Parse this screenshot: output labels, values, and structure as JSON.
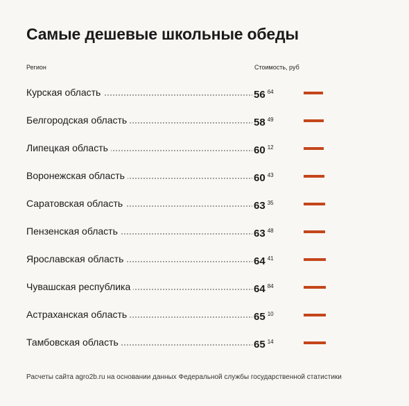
{
  "chart_data": {
    "type": "bar",
    "title": "Самые дешевые школьные обеды",
    "category_header": "Регион",
    "value_header": "Стоимость, руб",
    "categories": [
      "Курская область",
      "Белгородская область",
      "Липецкая область",
      "Воронежская область",
      "Саратовская область",
      "Пензенская область",
      "Ярославская область",
      "Чувашская республика",
      "Астраханская область",
      "Тамбовская область"
    ],
    "values": [
      56.64,
      58.49,
      60.12,
      60.43,
      63.35,
      63.48,
      64.41,
      64.84,
      65.1,
      65.14
    ],
    "value_labels": [
      [
        "56",
        "64"
      ],
      [
        "58",
        "49"
      ],
      [
        "60",
        "12"
      ],
      [
        "60",
        "43"
      ],
      [
        "63",
        "35"
      ],
      [
        "63",
        "48"
      ],
      [
        "64",
        "41"
      ],
      [
        "64",
        "84"
      ],
      [
        "65",
        "10"
      ],
      [
        "65",
        "14"
      ]
    ],
    "color": "#c4461b",
    "note": "Расчеты сайта agro2b.ru на основании данных Федеральной службы государственной статистики"
  }
}
